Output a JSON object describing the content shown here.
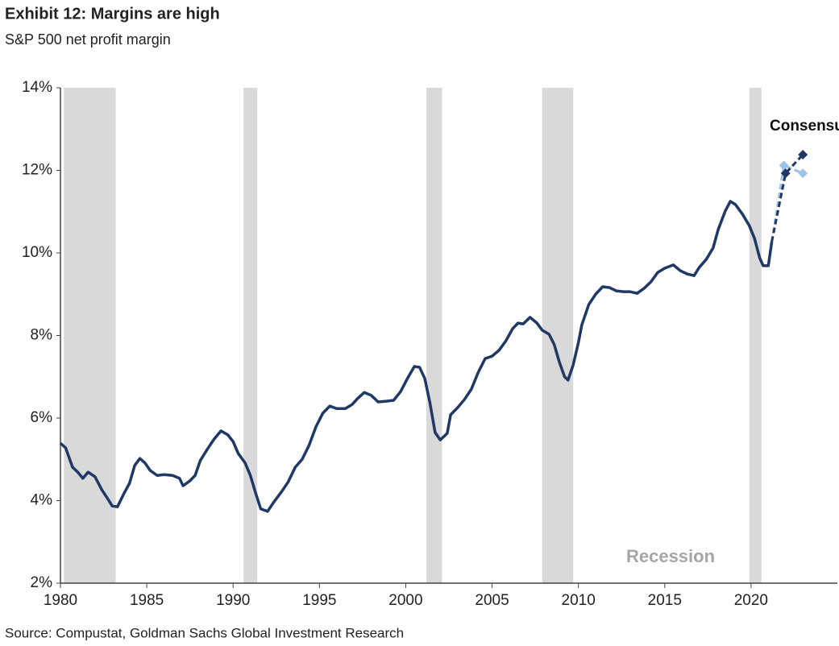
{
  "chart_data": {
    "type": "line",
    "title": "Exhibit 12: Margins are high",
    "subtitle": "S&P 500 net profit margin",
    "source": "Source: Compustat, Goldman Sachs Global Investment Research",
    "recession_label": "Recession",
    "annotation": "Consensus",
    "xlim": [
      1980,
      2025
    ],
    "xticks": [
      1980,
      1985,
      1990,
      1995,
      2000,
      2005,
      2010,
      2015,
      2020
    ],
    "ylim": [
      2,
      14
    ],
    "yticks": [
      {
        "value": 2,
        "label": "2%"
      },
      {
        "value": 4,
        "label": "4%"
      },
      {
        "value": 6,
        "label": "6%"
      },
      {
        "value": 8,
        "label": "8%"
      },
      {
        "value": 10,
        "label": "10%"
      },
      {
        "value": 12,
        "label": "12%"
      },
      {
        "value": 14,
        "label": "14%"
      }
    ],
    "recessions": [
      [
        1980.2,
        1983.2
      ],
      [
        1990.6,
        1991.4
      ],
      [
        2001.2,
        2002.1
      ],
      [
        2007.9,
        2009.7
      ],
      [
        2019.9,
        2020.6
      ]
    ],
    "recession_color": "#d9d9d9",
    "series": [
      {
        "color": "#1f3864",
        "style": "solid",
        "x": [
          1980.0,
          1980.3,
          1980.7,
          1981.0,
          1981.3,
          1981.6,
          1982.0,
          1982.4,
          1982.7,
          1983.0,
          1983.3,
          1983.7,
          1984.0,
          1984.3,
          1984.6,
          1984.9,
          1985.2,
          1985.6,
          1986.0,
          1986.5,
          1986.9,
          1987.1,
          1987.5,
          1987.8,
          1988.1,
          1988.5,
          1988.9,
          1989.3,
          1989.7,
          1990.0,
          1990.3,
          1990.7,
          1991.0,
          1991.3,
          1991.6,
          1992.0,
          1992.4,
          1992.8,
          1993.2,
          1993.6,
          1994.0,
          1994.4,
          1994.8,
          1995.2,
          1995.6,
          1996.0,
          1996.5,
          1996.9,
          1997.2,
          1997.6,
          1998.0,
          1998.4,
          1998.9,
          1999.3,
          1999.7,
          2000.1,
          2000.5,
          2000.8,
          2001.1,
          2001.4,
          2001.7,
          2002.0,
          2002.4,
          2002.6,
          2003.0,
          2003.4,
          2003.8,
          2004.2,
          2004.6,
          2005.0,
          2005.4,
          2005.8,
          2006.2,
          2006.5,
          2006.8,
          2007.2,
          2007.6,
          2007.9,
          2008.3,
          2008.6,
          2008.9,
          2009.2,
          2009.4,
          2009.7,
          2010.0,
          2010.2,
          2010.6,
          2011.0,
          2011.4,
          2011.8,
          2012.2,
          2012.6,
          2013.0,
          2013.4,
          2013.8,
          2014.2,
          2014.6,
          2015.0,
          2015.5,
          2015.9,
          2016.3,
          2016.7,
          2017.0,
          2017.4,
          2017.8,
          2018.1,
          2018.5,
          2018.8,
          2019.1,
          2019.5,
          2019.9,
          2020.2,
          2020.5,
          2020.7,
          2021.0,
          2021.2
        ],
        "values": [
          5.39,
          5.28,
          4.81,
          4.69,
          4.54,
          4.69,
          4.58,
          4.26,
          4.07,
          3.87,
          3.85,
          4.19,
          4.42,
          4.85,
          5.02,
          4.91,
          4.73,
          4.61,
          4.63,
          4.61,
          4.54,
          4.36,
          4.48,
          4.61,
          4.97,
          5.24,
          5.49,
          5.69,
          5.59,
          5.43,
          5.14,
          4.91,
          4.61,
          4.19,
          3.8,
          3.74,
          3.99,
          4.21,
          4.46,
          4.81,
          5.0,
          5.34,
          5.79,
          6.12,
          6.29,
          6.23,
          6.23,
          6.33,
          6.47,
          6.62,
          6.55,
          6.39,
          6.41,
          6.43,
          6.64,
          6.96,
          7.25,
          7.23,
          6.96,
          6.37,
          5.65,
          5.47,
          5.63,
          6.08,
          6.25,
          6.45,
          6.7,
          7.11,
          7.44,
          7.5,
          7.64,
          7.87,
          8.17,
          8.3,
          8.28,
          8.44,
          8.3,
          8.13,
          8.03,
          7.78,
          7.35,
          7.0,
          6.92,
          7.29,
          7.83,
          8.26,
          8.75,
          9.0,
          9.18,
          9.16,
          9.08,
          9.06,
          9.06,
          9.02,
          9.14,
          9.3,
          9.53,
          9.63,
          9.71,
          9.57,
          9.49,
          9.45,
          9.65,
          9.84,
          10.12,
          10.57,
          11.01,
          11.25,
          11.17,
          10.94,
          10.66,
          10.35,
          9.88,
          9.69,
          9.69,
          10.27
        ]
      },
      {
        "color": "#9dc3e6",
        "style": "dashed",
        "x": [
          2021.2,
          2021.9,
          2023.0
        ],
        "values": [
          10.27,
          12.12,
          11.93
        ]
      },
      {
        "color": "#1f3864",
        "style": "dashed",
        "x": [
          2021.2,
          2022.0,
          2023.0
        ],
        "values": [
          10.27,
          11.93,
          12.38
        ]
      }
    ]
  }
}
